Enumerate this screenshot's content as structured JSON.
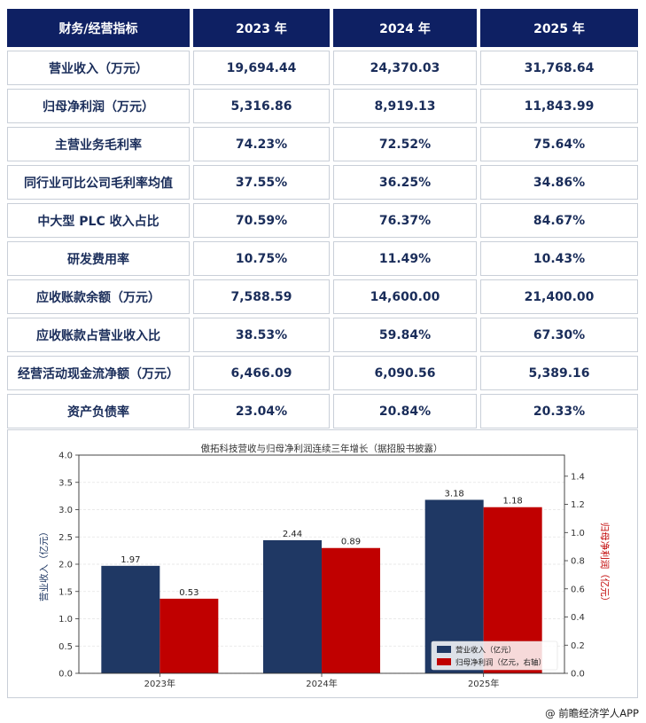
{
  "table": {
    "headers": [
      "财务/经营指标",
      "2023 年",
      "2024 年",
      "2025 年"
    ],
    "rows": [
      {
        "label": "营业收入（万元）",
        "values": [
          "19,694.44",
          "24,370.03",
          "31,768.64"
        ]
      },
      {
        "label": "归母净利润（万元）",
        "values": [
          "5,316.86",
          "8,919.13",
          "11,843.99"
        ]
      },
      {
        "label": "主营业务毛利率",
        "values": [
          "74.23%",
          "72.52%",
          "75.64%"
        ]
      },
      {
        "label": "同行业可比公司毛利率均值",
        "values": [
          "37.55%",
          "36.25%",
          "34.86%"
        ]
      },
      {
        "label": "中大型 PLC 收入占比",
        "values": [
          "70.59%",
          "76.37%",
          "84.67%"
        ]
      },
      {
        "label": "研发费用率",
        "values": [
          "10.75%",
          "11.49%",
          "10.43%"
        ]
      },
      {
        "label": "应收账款余额（万元）",
        "values": [
          "7,588.59",
          "14,600.00",
          "21,400.00"
        ]
      },
      {
        "label": "应收账款占营业收入比",
        "values": [
          "38.53%",
          "59.84%",
          "67.30%"
        ]
      },
      {
        "label": "经营活动现金流净额（万元）",
        "values": [
          "6,466.09",
          "6,090.56",
          "5,389.16"
        ]
      },
      {
        "label": "资产负债率",
        "values": [
          "23.04%",
          "20.84%",
          "20.33%"
        ]
      }
    ]
  },
  "chart_data": {
    "type": "bar",
    "title": "傲拓科技营收与归母净利润连续三年增长（据招股书披露）",
    "categories": [
      "2023年",
      "2024年",
      "2025年"
    ],
    "series": [
      {
        "name": "营业收入",
        "axis": "left",
        "color": "#1f3864",
        "values": [
          1.97,
          2.44,
          3.18
        ],
        "labels": [
          "1.97",
          "2.44",
          "3.18"
        ]
      },
      {
        "name": "归母净利润",
        "axis": "right",
        "color": "#c00000",
        "values": [
          0.53,
          0.89,
          1.18
        ],
        "labels": [
          "0.53",
          "0.89",
          "1.18"
        ]
      }
    ],
    "ylabel": "营业收入（亿元）",
    "ylabel_right": "归母净利润（亿元）",
    "ylim": [
      0,
      4.0
    ],
    "ylim_right": [
      0,
      1.55
    ],
    "yticks": [
      "0.0",
      "0.5",
      "1.0",
      "1.5",
      "2.0",
      "2.5",
      "3.0",
      "3.5",
      "4.0"
    ],
    "yticks_right": [
      "0.0",
      "0.2",
      "0.4",
      "0.6",
      "0.8",
      "1.0",
      "1.2",
      "1.4"
    ],
    "legend": [
      "营业收入（亿元）",
      "归母净利润（亿元，右轴）"
    ],
    "legend_position": "lower-right",
    "grid": true
  },
  "footer": {
    "credit": "@ 前瞻经济学人APP"
  }
}
